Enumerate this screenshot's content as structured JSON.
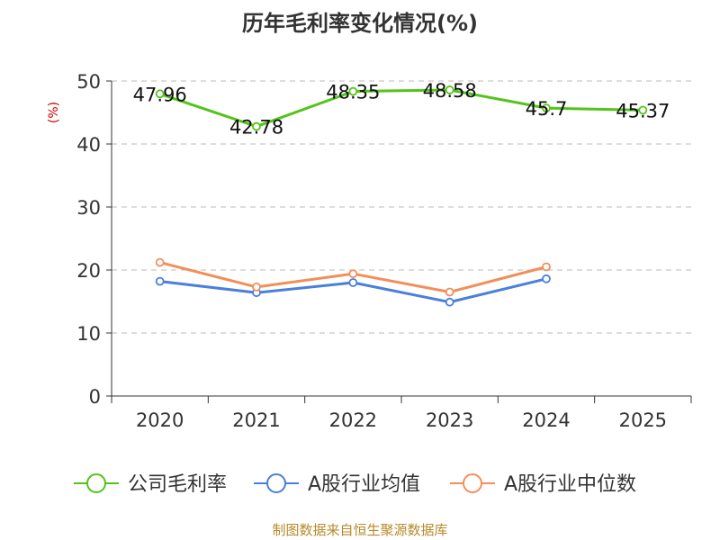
{
  "chart_data": {
    "type": "line",
    "title": "历年毛利率变化情况(%)",
    "ylabel": "(%)",
    "xlabel": "",
    "categories": [
      "2020",
      "2021",
      "2022",
      "2023",
      "2024",
      "2025"
    ],
    "ylim": [
      0,
      50
    ],
    "y_ticks": [
      "0",
      "10",
      "20",
      "30",
      "40",
      "50"
    ],
    "grid": true,
    "legend_position": "bottom",
    "series": [
      {
        "name": "公司毛利率",
        "color": "#52c41a",
        "values": [
          47.96,
          42.78,
          48.35,
          48.58,
          45.7,
          45.37
        ],
        "labels": [
          "47.96",
          "42.78",
          "48.35",
          "48.58",
          "45.7",
          "45.37"
        ]
      },
      {
        "name": "A股行业均值",
        "color": "#4a7fdc",
        "values": [
          18.2,
          16.4,
          18.0,
          14.9,
          18.6,
          null
        ]
      },
      {
        "name": "A股行业中位数",
        "color": "#f28e5a",
        "values": [
          21.2,
          17.3,
          19.4,
          16.5,
          20.5,
          null
        ]
      }
    ]
  },
  "footer": {
    "source": "制图数据来自恒生聚源数据库"
  },
  "colors": {
    "title": "#333333",
    "ylabel": "#cc0000",
    "source": "#b58a2a",
    "grid": "#bbbbbb",
    "axis": "#333333"
  }
}
